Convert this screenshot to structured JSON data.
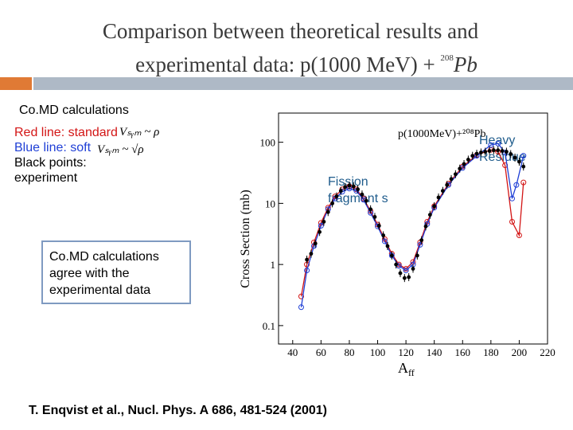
{
  "title": {
    "line1": "Comparison between theoretical results and",
    "line2": "experimental data: p(1000 MeV) + ",
    "superscript": "208",
    "element": "Pb"
  },
  "subtitle": "Co.MD calculations",
  "legend": {
    "red": "Red line: standard",
    "blue": "Blue line: soft",
    "black_a": "Black points:",
    "black_b": "experiment",
    "formula_std": "Vₛᵧₘ ~ ρ",
    "formula_soft": "Vₛᵧₘ ~ √ρ"
  },
  "callout": "Co.MD calculations agree with the experimental data",
  "annotations": {
    "fission": "Fission fragment s",
    "heavy": "Heavy Residue"
  },
  "citation": "T. Enqvist et al., Nucl. Phys. A  686, 481-524 (2001)",
  "colors": {
    "accent": "#e07a35",
    "rule": "#aeb9c6",
    "red": "#d31515",
    "blue": "#1f3fd6"
  },
  "chart_data": {
    "type": "scatter",
    "inset_label": "p(1000MeV)+²⁰⁸Pb",
    "xlabel": "A",
    "xlabel_sub": "ff",
    "ylabel": "Cross Section (mb)",
    "xlim": [
      30,
      220
    ],
    "ylim": [
      0.05,
      300
    ],
    "yscale": "log",
    "xticks": [
      "40",
      "60",
      "80",
      "100",
      "120",
      "140",
      "160",
      "180",
      "200",
      "220"
    ],
    "yticks": [
      "0.1",
      "1",
      "10",
      "100"
    ],
    "ytick_values": [
      0.1,
      1,
      10,
      100
    ],
    "series": [
      {
        "name": "experiment",
        "color": "#000000",
        "x": [
          50,
          53,
          56,
          59,
          62,
          65,
          68,
          71,
          74,
          77,
          80,
          83,
          86,
          89,
          92,
          95,
          98,
          101,
          104,
          107,
          110,
          113,
          116,
          119,
          122,
          125,
          128,
          131,
          134,
          137,
          140,
          143,
          146,
          149,
          152,
          155,
          158,
          161,
          164,
          167,
          170,
          173,
          176,
          179,
          182,
          185,
          188,
          191,
          194,
          197,
          200,
          203
        ],
        "y": [
          1.2,
          1.5,
          2.2,
          3.4,
          5,
          7.2,
          10,
          13,
          16,
          18.5,
          19.5,
          19,
          17,
          14,
          11,
          8,
          6,
          4.3,
          3,
          2,
          1.4,
          1,
          0.72,
          0.6,
          0.62,
          0.85,
          1.4,
          2.5,
          4.2,
          6.5,
          9,
          12.5,
          16,
          20,
          25,
          30,
          37,
          44,
          52,
          60,
          65,
          68,
          70,
          72,
          74,
          74,
          72,
          70,
          64,
          56,
          48,
          40
        ]
      },
      {
        "name": "standard",
        "color": "#d31515",
        "x": [
          46,
          50,
          55,
          60,
          65,
          70,
          75,
          80,
          85,
          90,
          95,
          100,
          105,
          110,
          115,
          120,
          125,
          130,
          135,
          140,
          150,
          160,
          170,
          180,
          185,
          190,
          195,
          200,
          203
        ],
        "y": [
          0.3,
          1.0,
          2.3,
          4.8,
          8.5,
          13,
          17,
          19,
          17,
          12,
          7.5,
          4.5,
          2.6,
          1.5,
          1.0,
          0.85,
          1.1,
          2.3,
          5,
          9,
          21,
          40,
          62,
          75,
          70,
          42,
          5,
          3,
          22
        ]
      },
      {
        "name": "soft",
        "color": "#1f3fd6",
        "x": [
          46,
          50,
          55,
          60,
          65,
          70,
          75,
          80,
          85,
          90,
          95,
          100,
          105,
          110,
          115,
          120,
          125,
          130,
          135,
          140,
          150,
          160,
          170,
          180,
          185,
          190,
          195,
          198,
          203
        ],
        "y": [
          0.2,
          0.8,
          2.0,
          4.3,
          8,
          12,
          15.5,
          17.5,
          16,
          11.5,
          7,
          4.2,
          2.4,
          1.4,
          0.95,
          0.8,
          1.0,
          2.1,
          4.6,
          8.5,
          20,
          38,
          60,
          90,
          95,
          68,
          12,
          20,
          60
        ]
      }
    ],
    "legend_placement": "none",
    "grid": false
  }
}
